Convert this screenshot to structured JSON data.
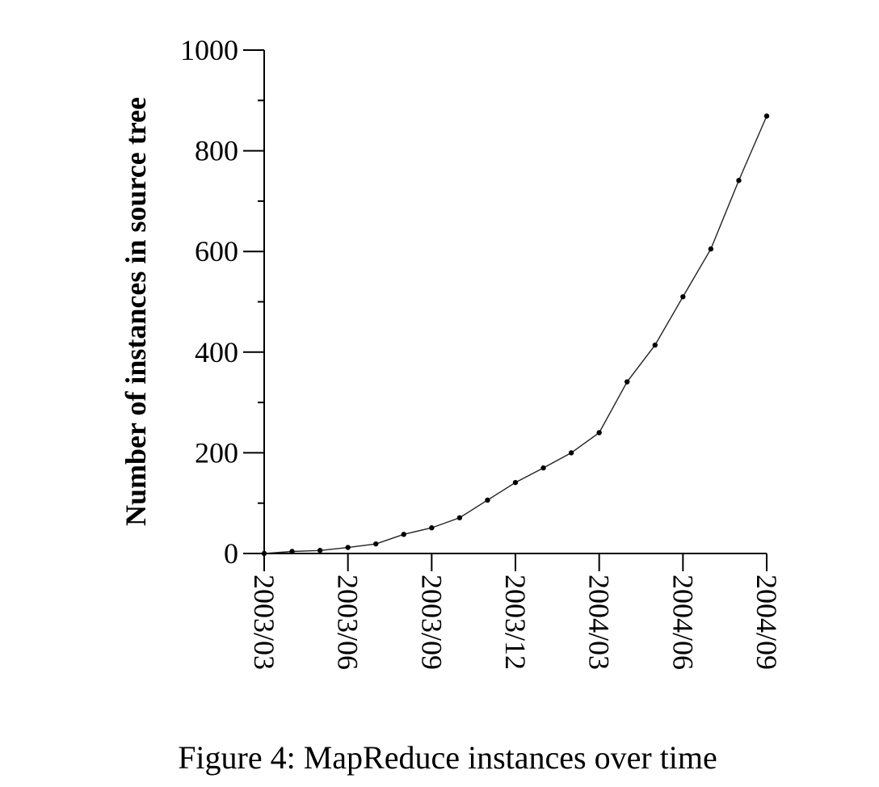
{
  "caption": "Figure 4: MapReduce instances over time",
  "chart_data": {
    "type": "line",
    "title": "",
    "xlabel": "",
    "ylabel": "Number of instances in source tree",
    "ylim": [
      0,
      1000
    ],
    "xlim": [
      0,
      18
    ],
    "yticks": [
      0,
      200,
      400,
      600,
      800,
      1000
    ],
    "yticks_minor_step": 100,
    "xticks": [
      {
        "x": 0,
        "label": "2003/03"
      },
      {
        "x": 3,
        "label": "2003/06"
      },
      {
        "x": 6,
        "label": "2003/09"
      },
      {
        "x": 9,
        "label": "2003/12"
      },
      {
        "x": 12,
        "label": "2004/03"
      },
      {
        "x": 15,
        "label": "2004/06"
      },
      {
        "x": 18,
        "label": "2004/09"
      }
    ],
    "x_unit": "months since 2003/03",
    "series": [
      {
        "name": "MapReduce instances",
        "marker": "dot",
        "x": [
          0,
          1,
          2,
          3,
          4,
          5,
          6,
          7,
          8,
          9,
          10,
          11,
          12,
          13,
          14,
          15,
          16,
          17,
          18
        ],
        "values": [
          0,
          4,
          6,
          12,
          19,
          38,
          51,
          71,
          106,
          141,
          170,
          200,
          240,
          341,
          414,
          510,
          605,
          741,
          869
        ]
      }
    ],
    "grid": false,
    "legend": "none"
  }
}
